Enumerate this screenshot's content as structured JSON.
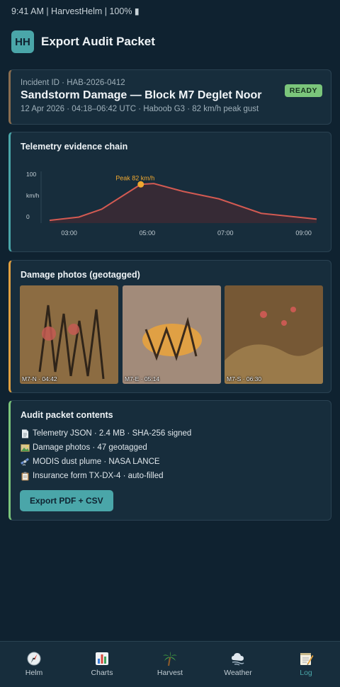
{
  "status_bar": {
    "text": "9:41 AM | HarvestHelm | 100% ▮"
  },
  "header": {
    "logo": "HH",
    "title": "Export Audit Packet"
  },
  "incident": {
    "id_line": "Incident ID · HAB-2026-0412",
    "title": "Sandstorm Damage — Block M7 Deglet Noor",
    "meta": "12 Apr 2026 · 04:18–06:42 UTC · Haboob G3 · 82 km/h peak gust",
    "badge": "READY"
  },
  "telemetry": {
    "title": "Telemetry evidence chain",
    "peak_label": "Peak 82 km/h"
  },
  "chart_data": {
    "type": "area",
    "x": [
      "02:30",
      "03:15",
      "03:50",
      "04:50",
      "05:10",
      "05:55",
      "06:50",
      "07:55",
      "09:20"
    ],
    "values": [
      -5,
      3,
      22,
      82,
      84,
      65,
      47,
      12,
      -2
    ],
    "xticks": [
      "03:00",
      "05:00",
      "07:00",
      "09:00"
    ],
    "yticks": [
      "100",
      "km/h",
      "0"
    ],
    "ylabel": "km/h",
    "ylim": [
      -15,
      115
    ],
    "color": "#d35a52",
    "fill": "#3a2a34"
  },
  "photos": {
    "title": "Damage photos (geotagged)",
    "items": [
      {
        "label": "M7-N · 04:42",
        "bg": "#8c6c42"
      },
      {
        "label": "M7-E · 05:14",
        "bg": "#a28b7a"
      },
      {
        "label": "M7-S · 06:30",
        "bg": "#765835"
      }
    ]
  },
  "contents": {
    "title": "Audit packet contents",
    "items": [
      {
        "icon": "document-icon",
        "text": "Telemetry JSON · 2.4 MB · SHA-256 signed"
      },
      {
        "icon": "image-icon",
        "text": "Damage photos · 47 geotagged"
      },
      {
        "icon": "satellite-icon",
        "text": "MODIS dust plume · NASA LANCE"
      },
      {
        "icon": "clipboard-icon",
        "text": "Insurance form TX-DX-4 · auto-filled"
      }
    ],
    "export_label": "Export PDF + CSV"
  },
  "nav": {
    "items": [
      {
        "icon": "compass-icon",
        "label": "Helm"
      },
      {
        "icon": "bar-chart-icon",
        "label": "Charts"
      },
      {
        "icon": "palm-tree-icon",
        "label": "Harvest"
      },
      {
        "icon": "wind-icon",
        "label": "Weather"
      },
      {
        "icon": "notepad-icon",
        "label": "Log"
      }
    ],
    "active": "Log"
  }
}
